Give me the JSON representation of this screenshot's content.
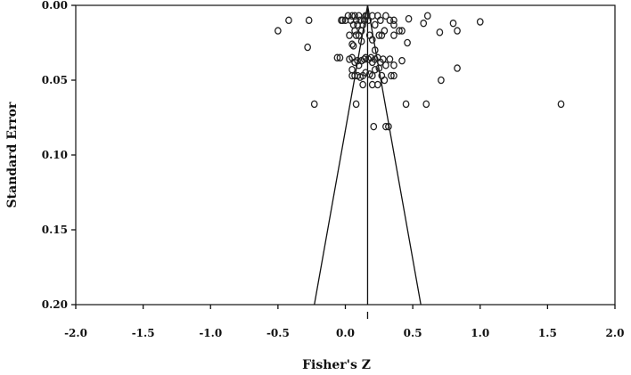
{
  "chart_data": {
    "type": "scatter",
    "title": "",
    "xlabel": "Fisher's Z",
    "ylabel": "Standard Error",
    "xlim": [
      -2.0,
      2.0
    ],
    "ylim": [
      0.0,
      0.2
    ],
    "y_inverted": true,
    "x_ticks": [
      "-2.0",
      "-1.5",
      "-1.0",
      "-0.5",
      "0.0",
      "0.5",
      "1.0",
      "1.5",
      "2.0"
    ],
    "y_ticks": [
      "0.00",
      "0.05",
      "0.10",
      "0.15",
      "0.20"
    ],
    "grid": false,
    "legend": "none",
    "mean_effect": 0.165,
    "funnel_lines": [
      {
        "x1": 0.165,
        "y1": 0.0,
        "x2": -0.23,
        "y2": 0.2
      },
      {
        "x1": 0.165,
        "y1": 0.0,
        "x2": 0.56,
        "y2": 0.2
      }
    ],
    "points": [
      [
        -0.5,
        0.017
      ],
      [
        -0.42,
        0.01
      ],
      [
        -0.27,
        0.01
      ],
      [
        -0.28,
        0.028
      ],
      [
        -0.23,
        0.066
      ],
      [
        -0.06,
        0.035
      ],
      [
        -0.04,
        0.035
      ],
      [
        -0.03,
        0.01
      ],
      [
        -0.02,
        0.01
      ],
      [
        0.0,
        0.01
      ],
      [
        0.02,
        0.007
      ],
      [
        0.04,
        0.01
      ],
      [
        0.05,
        0.007
      ],
      [
        0.06,
        0.013
      ],
      [
        0.07,
        0.007
      ],
      [
        0.07,
        0.017
      ],
      [
        0.08,
        0.01
      ],
      [
        0.09,
        0.013
      ],
      [
        0.1,
        0.007
      ],
      [
        0.11,
        0.01
      ],
      [
        0.12,
        0.017
      ],
      [
        0.13,
        0.013
      ],
      [
        0.14,
        0.01
      ],
      [
        0.15,
        0.007
      ],
      [
        0.16,
        0.007
      ],
      [
        0.17,
        0.01
      ],
      [
        0.2,
        0.007
      ],
      [
        0.22,
        0.013
      ],
      [
        0.24,
        0.007
      ],
      [
        0.26,
        0.01
      ],
      [
        0.3,
        0.007
      ],
      [
        0.33,
        0.01
      ],
      [
        0.36,
        0.01
      ],
      [
        0.36,
        0.02
      ],
      [
        0.4,
        0.017
      ],
      [
        0.42,
        0.017
      ],
      [
        0.36,
        0.013
      ],
      [
        0.47,
        0.009
      ],
      [
        0.58,
        0.012
      ],
      [
        0.61,
        0.007
      ],
      [
        0.46,
        0.025
      ],
      [
        0.7,
        0.018
      ],
      [
        0.8,
        0.012
      ],
      [
        0.83,
        0.017
      ],
      [
        1.0,
        0.011
      ],
      [
        0.03,
        0.02
      ],
      [
        0.05,
        0.026
      ],
      [
        0.06,
        0.027
      ],
      [
        0.08,
        0.02
      ],
      [
        0.1,
        0.02
      ],
      [
        0.12,
        0.024
      ],
      [
        0.18,
        0.02
      ],
      [
        0.2,
        0.023
      ],
      [
        0.22,
        0.03
      ],
      [
        0.25,
        0.02
      ],
      [
        0.27,
        0.02
      ],
      [
        0.29,
        0.017
      ],
      [
        0.03,
        0.036
      ],
      [
        0.05,
        0.035
      ],
      [
        0.07,
        0.038
      ],
      [
        0.09,
        0.037
      ],
      [
        0.1,
        0.04
      ],
      [
        0.12,
        0.037
      ],
      [
        0.14,
        0.036
      ],
      [
        0.15,
        0.035
      ],
      [
        0.17,
        0.036
      ],
      [
        0.19,
        0.035
      ],
      [
        0.2,
        0.038
      ],
      [
        0.22,
        0.036
      ],
      [
        0.24,
        0.035
      ],
      [
        0.26,
        0.038
      ],
      [
        0.28,
        0.036
      ],
      [
        0.3,
        0.04
      ],
      [
        0.33,
        0.036
      ],
      [
        0.36,
        0.04
      ],
      [
        0.42,
        0.037
      ],
      [
        0.05,
        0.047
      ],
      [
        0.07,
        0.047
      ],
      [
        0.09,
        0.047
      ],
      [
        0.11,
        0.048
      ],
      [
        0.13,
        0.047
      ],
      [
        0.15,
        0.045
      ],
      [
        0.18,
        0.046
      ],
      [
        0.2,
        0.047
      ],
      [
        0.22,
        0.043
      ],
      [
        0.25,
        0.042
      ],
      [
        0.27,
        0.047
      ],
      [
        0.29,
        0.05
      ],
      [
        0.34,
        0.047
      ],
      [
        0.36,
        0.047
      ],
      [
        0.13,
        0.053
      ],
      [
        0.2,
        0.053
      ],
      [
        0.24,
        0.053
      ],
      [
        0.71,
        0.05
      ],
      [
        0.83,
        0.042
      ],
      [
        0.08,
        0.066
      ],
      [
        0.45,
        0.066
      ],
      [
        0.6,
        0.066
      ],
      [
        1.6,
        0.066
      ],
      [
        0.05,
        0.043
      ],
      [
        0.21,
        0.081
      ],
      [
        0.3,
        0.081
      ],
      [
        0.32,
        0.081
      ]
    ]
  }
}
